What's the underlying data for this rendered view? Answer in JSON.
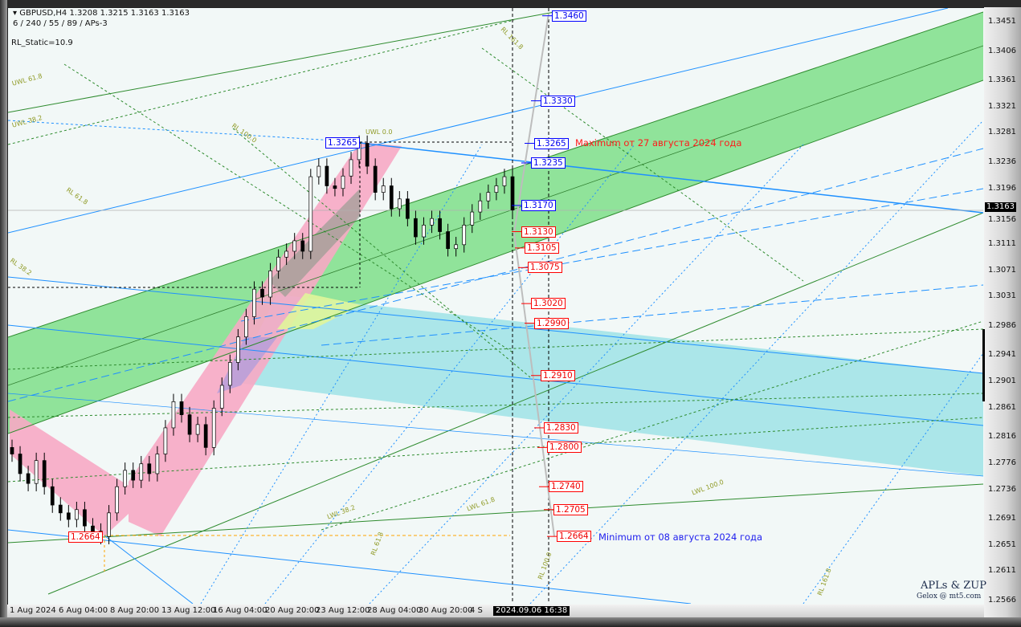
{
  "header": {
    "symbol_line": "GBPUSD,H4  1.3208 1.3215 1.3163 1.3163",
    "params_line": "6 / 240 / 55 / 89 / APs-3",
    "rl_static": "RL_Static=10.9"
  },
  "watermark": {
    "title": "APLs & ZUP",
    "subtitle": "Gelox @ mt5.com"
  },
  "colors": {
    "background": "#f2f8f7",
    "green_channel": "#7fdf8a",
    "cyan_channel": "#9fe3e6",
    "pink_band": "#f7a8c4",
    "bull_candle": "#ffffff",
    "bear_candle": "#000000",
    "blue_label": "#0000ff",
    "red_label": "#ff0000"
  },
  "annotations": {
    "max_note": "Maximum от 27 августа 2024 года",
    "min_note": "Minimum от 08 августа 2024 года"
  },
  "fib_labels": [
    "RL 161.8",
    "UWL 61.8",
    "UWL 38.2",
    "RL 100.0",
    "RL 61.8",
    "RL 38.2",
    "UWL 0.0",
    "LWL 38.2",
    "LWL 61.8",
    "LWL 100.0",
    "RL 61.8",
    "RL 100.0",
    "RL 161.8"
  ],
  "chart_data": {
    "type": "candlestick",
    "symbol": "GBPUSD",
    "timeframe": "H4",
    "ylim": [
      1.2566,
      1.3451
    ],
    "current_price": "1.3163",
    "y_ticks": [
      "1.3451",
      "1.3406",
      "1.3361",
      "1.3321",
      "1.3281",
      "1.3236",
      "1.3196",
      "1.3156",
      "1.3111",
      "1.3071",
      "1.3031",
      "1.2986",
      "1.2941",
      "1.2901",
      "1.2861",
      "1.2816",
      "1.2776",
      "1.2736",
      "1.2691",
      "1.2651",
      "1.2611",
      "1.2566"
    ],
    "x_ticks": [
      "1 Aug 2024",
      "6 Aug 04:00",
      "8 Aug 20:00",
      "13 Aug 12:00",
      "16 Aug 04:00",
      "20 Aug 20:00",
      "23 Aug 12:00",
      "28 Aug 04:00",
      "30 Aug 20:00",
      "4 S"
    ],
    "cursor_time": "2024.09.06 16:38",
    "closes": [
      1.279,
      1.276,
      1.2745,
      1.278,
      1.274,
      1.2712,
      1.27,
      1.269,
      1.2705,
      1.268,
      1.2672,
      1.2664,
      1.27,
      1.274,
      1.2765,
      1.275,
      1.2775,
      1.276,
      1.279,
      1.283,
      1.287,
      1.285,
      1.282,
      1.2835,
      1.28,
      1.286,
      1.2895,
      1.293,
      1.2969,
      1.3,
      1.3042,
      1.303,
      1.307,
      1.3091,
      1.31,
      1.3116,
      1.31,
      1.3214,
      1.323,
      1.32,
      1.3196,
      1.3215,
      1.324,
      1.3265,
      1.323,
      1.319,
      1.32,
      1.3165,
      1.318,
      1.315,
      1.3122,
      1.314,
      1.315,
      1.313,
      1.3104,
      1.311,
      1.314,
      1.316,
      1.3177,
      1.319,
      1.32,
      1.3214,
      1.3163
    ],
    "price_levels": [
      {
        "price": "1.3460",
        "color": "blue"
      },
      {
        "price": "1.3330",
        "color": "blue"
      },
      {
        "price": "1.3265",
        "color": "blue"
      },
      {
        "price": "1.3235",
        "color": "blue"
      },
      {
        "price": "1.3170",
        "color": "blue"
      },
      {
        "price": "1.3130",
        "color": "red"
      },
      {
        "price": "1.3105",
        "color": "red"
      },
      {
        "price": "1.3075",
        "color": "red"
      },
      {
        "price": "1.3020",
        "color": "red"
      },
      {
        "price": "1.2990",
        "color": "red"
      },
      {
        "price": "1.2910",
        "color": "red"
      },
      {
        "price": "1.2830",
        "color": "red"
      },
      {
        "price": "1.2800",
        "color": "red"
      },
      {
        "price": "1.2740",
        "color": "red"
      },
      {
        "price": "1.2705",
        "color": "red"
      },
      {
        "price": "1.2664",
        "color": "red"
      }
    ],
    "swing_labels": [
      {
        "price": "1.3265",
        "color": "blue"
      },
      {
        "price": "1.2664",
        "color": "red"
      }
    ]
  }
}
